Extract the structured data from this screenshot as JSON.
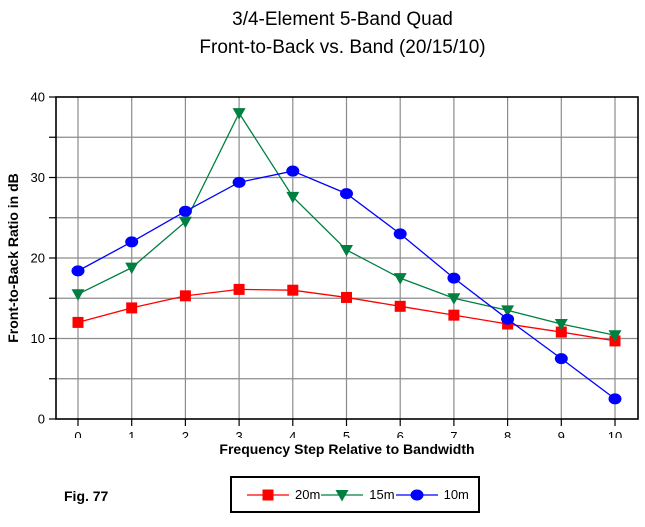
{
  "title": {
    "line1": "3/4-Element 5-Band Quad",
    "line2": "Front-to-Back vs. Band (20/15/10)"
  },
  "figure_label": "Fig. 77",
  "chart_data": {
    "type": "line",
    "x": [
      0,
      1,
      2,
      3,
      4,
      5,
      6,
      7,
      8,
      9,
      10
    ],
    "x_tick_labels": [
      "0",
      "1",
      "2",
      "3",
      "4",
      "5",
      "6",
      "7",
      "8",
      "9",
      "10"
    ],
    "y_tick_labels": [
      "0",
      "10",
      "20",
      "30",
      "40"
    ],
    "xlabel": "Frequency Step Relative to Bandwidth",
    "ylabel": "Front-to-Back Ratio in dB",
    "ylim": [
      0,
      40
    ],
    "y_grid_interval": 5,
    "grid": true,
    "legend_position": "bottom",
    "grid_color": "#8c8c8c",
    "axis_color": "#000000",
    "series": [
      {
        "name": "20m",
        "color": "#FF0000",
        "marker": "square",
        "values": [
          12,
          13.8,
          15.3,
          16.1,
          16,
          15.1,
          14,
          12.9,
          11.8,
          10.8,
          9.7
        ]
      },
      {
        "name": "15m",
        "color": "#008040",
        "marker": "triangle-down",
        "values": [
          15.5,
          18.8,
          24.5,
          38,
          27.6,
          21,
          17.5,
          15,
          13.5,
          11.8,
          10.4
        ]
      },
      {
        "name": "10m",
        "color": "#0000FF",
        "marker": "circle",
        "values": [
          18.4,
          22,
          25.8,
          29.4,
          30.8,
          28,
          23,
          17.5,
          12.4,
          7.5,
          2.5
        ]
      }
    ]
  }
}
